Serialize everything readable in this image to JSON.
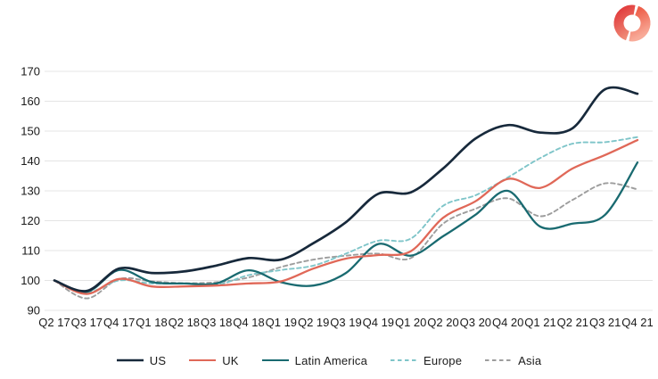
{
  "page": {
    "background": "#ffffff"
  },
  "logo": {
    "shape": "split-donut",
    "colors": {
      "left_start": "#e24040",
      "left_end": "#ef8a76",
      "right_start": "#ee5f4a",
      "right_end": "#f8ab99"
    }
  },
  "chart_data": {
    "type": "line",
    "title": "",
    "xlabel": "",
    "ylabel": "",
    "index_base": 100,
    "categories": [
      "Q2 17",
      "Q3 17",
      "Q4 17",
      "Q1 18",
      "Q2 18",
      "Q3 18",
      "Q4 18",
      "Q1 19",
      "Q2 19",
      "Q3 19",
      "Q4 19",
      "Q1 20",
      "Q2 20",
      "Q3 20",
      "Q4 20",
      "Q1 21",
      "Q2 21",
      "Q3 21",
      "Q4 21"
    ],
    "series": [
      {
        "name": "US",
        "color": "#17293b",
        "style": "solid",
        "width": 2.7,
        "values": [
          100,
          96.5,
          104,
          102.5,
          103,
          105,
          107.5,
          107,
          112.5,
          119.5,
          129,
          129.5,
          137.5,
          147.5,
          152,
          149.5,
          151,
          164,
          162.5
        ]
      },
      {
        "name": "UK",
        "color": "#e06858",
        "style": "solid",
        "width": 2.3,
        "values": [
          100,
          95.5,
          100.5,
          98,
          98,
          98.3,
          99,
          99.7,
          104,
          107.3,
          108.5,
          109.8,
          121,
          126.5,
          134,
          131,
          137.5,
          142,
          147
        ]
      },
      {
        "name": "Latin America",
        "color": "#196a70",
        "style": "solid",
        "width": 2.3,
        "values": [
          100,
          96.2,
          103.5,
          99.5,
          99,
          99,
          103.4,
          99.4,
          98.3,
          102.5,
          112.2,
          108.3,
          114.8,
          122,
          130,
          118,
          119,
          122,
          139.5
        ]
      },
      {
        "name": "Europe",
        "color": "#7fc5c9",
        "style": "dashed",
        "width": 1.9,
        "values": [
          100,
          96,
          100,
          99,
          99,
          98.5,
          101.8,
          103.5,
          105,
          109,
          113.3,
          114,
          125,
          128.5,
          134.5,
          141,
          145.8,
          146.3,
          148
        ]
      },
      {
        "name": "Asia",
        "color": "#9d9d9d",
        "style": "dashed",
        "width": 1.9,
        "values": [
          100,
          94,
          100.5,
          99.7,
          99.1,
          99.4,
          101,
          104.5,
          107,
          108.3,
          109,
          107.5,
          119,
          124,
          127.5,
          121.5,
          127,
          132.5,
          130.5
        ]
      }
    ],
    "ylim": [
      90,
      170
    ],
    "yticks": [
      90,
      100,
      110,
      120,
      130,
      140,
      150,
      160,
      170
    ],
    "grid": "horizontal",
    "grid_color": "#e4e4e4",
    "axis_label_color": "#1a1a1a",
    "legend_position": "bottom"
  }
}
